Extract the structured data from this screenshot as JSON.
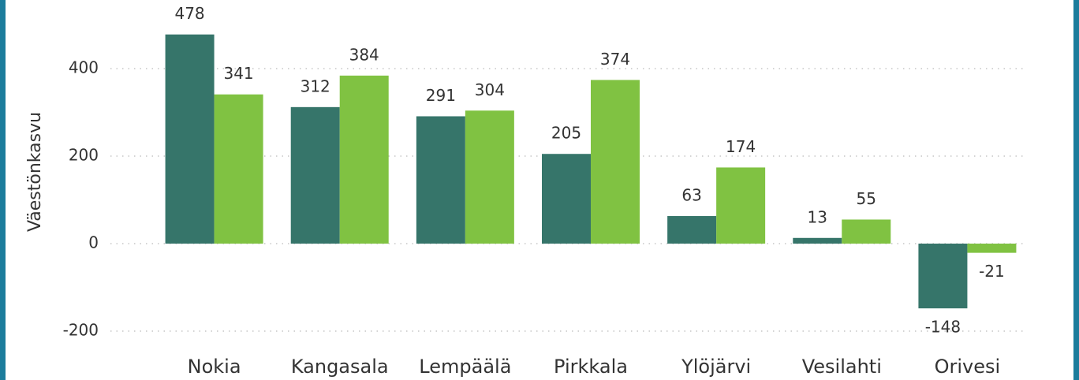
{
  "chart_data": {
    "type": "bar",
    "y_label": "Väestönkasvu",
    "categories": [
      "Nokia",
      "Kangasala",
      "Lempäälä",
      "Pirkkala",
      "Ylöjärvi",
      "Vesilahti",
      "Orivesi"
    ],
    "series": [
      {
        "color": "#36756a",
        "values": [
          478,
          312,
          291,
          205,
          63,
          13,
          -148
        ]
      },
      {
        "color": "#80c242",
        "values": [
          341,
          384,
          304,
          374,
          174,
          55,
          -21
        ]
      }
    ],
    "ylim": [
      -230,
      520
    ],
    "yticks": [
      -200,
      0,
      200,
      400
    ],
    "grid": true
  }
}
